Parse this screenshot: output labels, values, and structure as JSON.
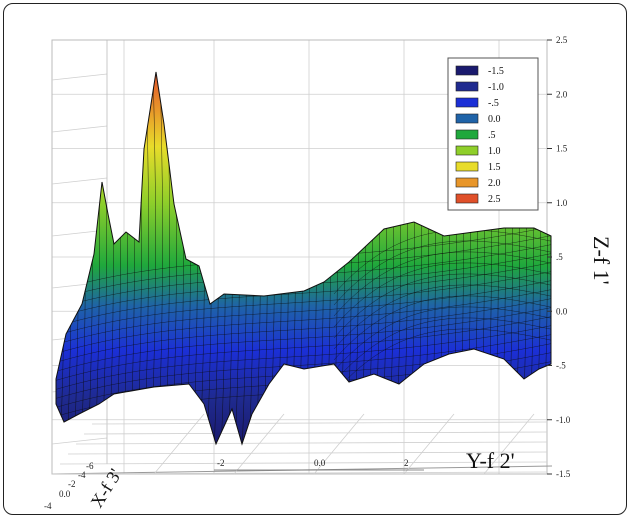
{
  "chart_data": {
    "type": "surface",
    "xlabel": "X-f 3'",
    "ylabel": "Y-f 2'",
    "zlabel": "Z-f 1'",
    "zlim": [
      -1.5,
      2.5
    ],
    "z_ticks": [
      "2.5",
      "2.0",
      "1.5",
      "1.0",
      ".5",
      "0.0",
      "-.5",
      "-1.0",
      "-1.5"
    ],
    "y_ticks": [
      "-2",
      "0.0",
      "2"
    ],
    "x_ticks": [
      "-6",
      "-4",
      "-2",
      "0.0",
      "-4"
    ],
    "grid": true,
    "legend_position": "top-right",
    "legend": [
      {
        "label": "-1.5",
        "color": "#1a1a6e"
      },
      {
        "label": "-1.0",
        "color": "#1f2a8f"
      },
      {
        "label": "-.5",
        "color": "#1b2fd6"
      },
      {
        "label": "0.0",
        "color": "#1f63a8"
      },
      {
        "label": ".5",
        "color": "#1fa83c"
      },
      {
        "label": "1.0",
        "color": "#8fcf2a"
      },
      {
        "label": "1.5",
        "color": "#e8dc2a"
      },
      {
        "label": "2.0",
        "color": "#e8962a"
      },
      {
        "label": "2.5",
        "color": "#e0502a"
      }
    ]
  }
}
